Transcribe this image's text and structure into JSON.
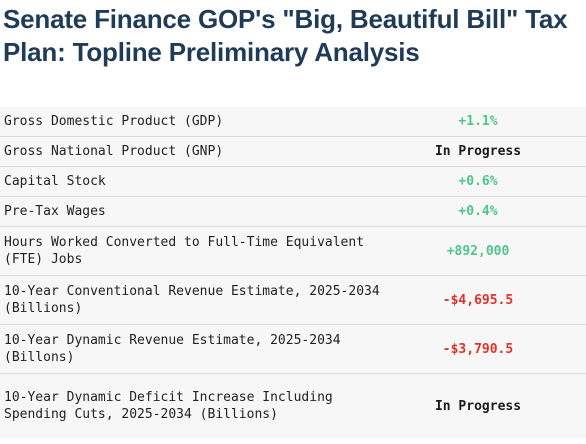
{
  "title": "Senate Finance GOP's \"Big, Beautiful Bill\" Tax Plan: Topline Preliminary Analysis",
  "colors": {
    "title": "#1f3b57",
    "positive": "#4fc58a",
    "negative": "#e0322b",
    "neutral": "#1a1a1a",
    "row_background": "#f7f7f7"
  },
  "rows": [
    {
      "label": "Gross Domestic Product (GDP)",
      "value": "+1.1%"
    },
    {
      "label": "Gross National Product (GNP)",
      "value": "In Progress"
    },
    {
      "label": "Capital Stock",
      "value": "+0.6%"
    },
    {
      "label": "Pre-Tax Wages",
      "value": "+0.4%"
    },
    {
      "label": "Hours Worked Converted to Full-Time Equivalent (FTE) Jobs",
      "value": "+892,000"
    },
    {
      "label": "10-Year Conventional Revenue Estimate, 2025-2034 (Billions)",
      "value": "-$4,695.5"
    },
    {
      "label": "10-Year Dynamic Revenue Estimate, 2025-2034 (Billons)",
      "value": "-$3,790.5"
    },
    {
      "label": "10-Year Dynamic Deficit Increase Including Spending Cuts, 2025-2034 (Billions)",
      "value": "In Progress"
    }
  ]
}
